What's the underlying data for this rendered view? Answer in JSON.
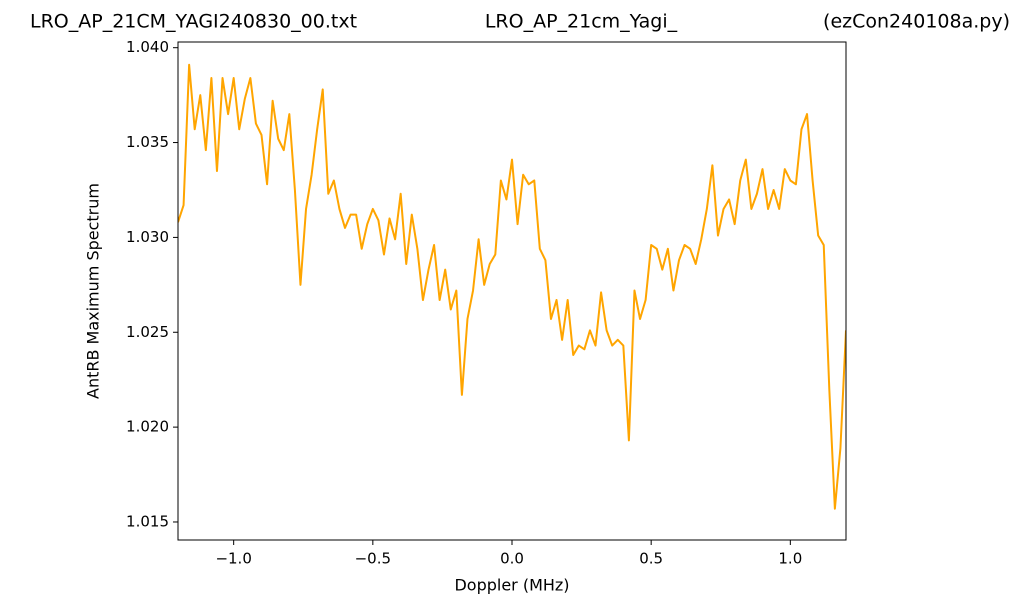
{
  "chart_data": {
    "type": "line",
    "title": [
      "LRO_AP_21CM_YAGI240830_00.txt",
      "LRO_AP_21cm_Yagi_",
      "(ezCon240108a.py)"
    ],
    "xlabel": "Doppler (MHz)",
    "ylabel": "AntRB Maximum Spectrum",
    "color": "#ffa500",
    "xlim": [
      -1.2,
      1.2
    ],
    "ylim": [
      1.01405,
      1.0403
    ],
    "xticks": [
      {
        "value": -1.0,
        "label": "−1.0"
      },
      {
        "value": -0.5,
        "label": "−0.5"
      },
      {
        "value": 0,
        "label": "0.0"
      },
      0.5,
      {
        "value": 1.0,
        "label": "1.0"
      }
    ],
    "yticks": [
      {
        "value": 1.015,
        "label": "1.015"
      },
      {
        "value": 1.02,
        "label": "1.020"
      },
      {
        "value": 1.025,
        "label": "1.025"
      },
      {
        "value": 1.03,
        "label": "1.030"
      },
      {
        "value": 1.035,
        "label": "1.035"
      },
      {
        "value": 1.04,
        "label": "1.040"
      }
    ],
    "x": [
      -1.2,
      -1.18,
      -1.16,
      -1.14,
      -1.12,
      -1.1,
      -1.08,
      -1.06,
      -1.04,
      -1.02,
      -1.0,
      -0.98,
      -0.96,
      -0.94,
      -0.92,
      -0.9,
      -0.88,
      -0.86,
      -0.84,
      -0.82,
      -0.8,
      -0.78,
      -0.76,
      -0.74,
      -0.72,
      -0.7,
      -0.68,
      -0.66,
      -0.64,
      -0.62,
      -0.6,
      -0.58,
      -0.56,
      -0.54,
      -0.52,
      -0.5,
      -0.48,
      -0.46,
      -0.44,
      -0.42,
      -0.4,
      -0.38,
      -0.36,
      -0.34,
      -0.32,
      -0.3,
      -0.28,
      -0.26,
      -0.24,
      -0.22,
      -0.2,
      -0.18,
      -0.16,
      -0.14,
      -0.12,
      -0.1,
      -0.08,
      -0.06,
      -0.04,
      -0.02,
      0.0,
      0.02,
      0.04,
      0.06,
      0.08,
      0.1,
      0.12,
      0.14,
      0.16,
      0.18,
      0.2,
      0.22,
      0.24,
      0.26,
      0.28,
      0.3,
      0.32,
      0.34,
      0.36,
      0.38,
      0.4,
      0.42,
      0.44,
      0.46,
      0.48,
      0.5,
      0.52,
      0.54,
      0.56,
      0.58,
      0.6,
      0.62,
      0.64,
      0.66,
      0.68,
      0.7,
      0.72,
      0.74,
      0.76,
      0.78,
      0.8,
      0.82,
      0.84,
      0.86,
      0.88,
      0.9,
      0.92,
      0.94,
      0.96,
      0.98,
      1.0,
      1.02,
      1.04,
      1.06,
      1.08,
      1.1,
      1.12,
      1.14,
      1.16,
      1.18,
      1.2
    ],
    "values": [
      1.0308,
      1.0317,
      1.0391,
      1.0357,
      1.0375,
      1.0346,
      1.0384,
      1.0335,
      1.0384,
      1.0365,
      1.0384,
      1.0357,
      1.0373,
      1.0384,
      1.036,
      1.0354,
      1.0328,
      1.0372,
      1.0352,
      1.0346,
      1.0365,
      1.0325,
      1.0275,
      1.0315,
      1.0333,
      1.0357,
      1.0378,
      1.0323,
      1.033,
      1.0315,
      1.0305,
      1.0312,
      1.0312,
      1.0294,
      1.0307,
      1.0315,
      1.0309,
      1.0291,
      1.031,
      1.0299,
      1.0323,
      1.0286,
      1.0312,
      1.0294,
      1.0267,
      1.0283,
      1.0296,
      1.0267,
      1.0283,
      1.0262,
      1.0272,
      1.0217,
      1.0257,
      1.0272,
      1.0299,
      1.0275,
      1.0286,
      1.0291,
      1.033,
      1.032,
      1.0341,
      1.0307,
      1.0333,
      1.0328,
      1.033,
      1.0294,
      1.0288,
      1.0257,
      1.0267,
      1.0246,
      1.0267,
      1.0238,
      1.0243,
      1.0241,
      1.0251,
      1.0243,
      1.0271,
      1.0251,
      1.0243,
      1.0246,
      1.0243,
      1.0193,
      1.0272,
      1.0257,
      1.0267,
      1.0296,
      1.0294,
      1.0283,
      1.0294,
      1.0272,
      1.0288,
      1.0296,
      1.0294,
      1.0286,
      1.0299,
      1.0315,
      1.0338,
      1.0301,
      1.0315,
      1.032,
      1.0307,
      1.033,
      1.0341,
      1.0315,
      1.0323,
      1.0336,
      1.0315,
      1.0325,
      1.0315,
      1.0336,
      1.033,
      1.0328,
      1.0357,
      1.0365,
      1.033,
      1.0301,
      1.0296,
      1.022,
      1.0157,
      1.0189,
      1.0251
    ]
  }
}
